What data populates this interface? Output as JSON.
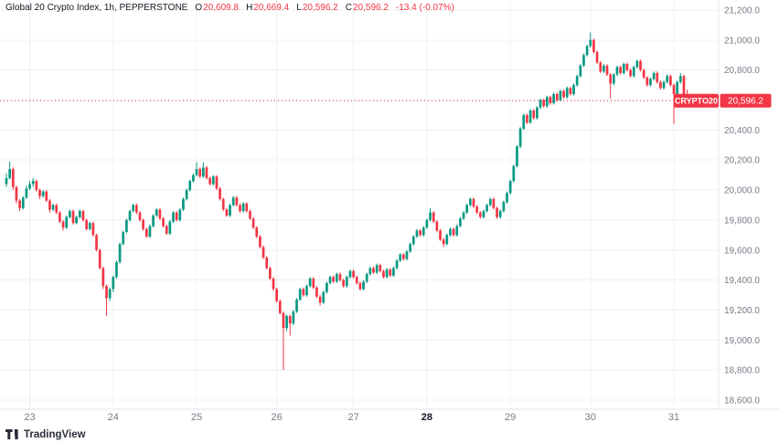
{
  "legend": {
    "title": "Global 20 Crypto Index, 1h, PEPPERSTONE",
    "items": [
      {
        "k": "O",
        "v": "20,609.8"
      },
      {
        "k": "H",
        "v": "20,669.4"
      },
      {
        "k": "L",
        "v": "20,596.2"
      },
      {
        "k": "C",
        "v": "20,596.2"
      }
    ],
    "change": "-13.4 (-0.07%)"
  },
  "footer": {
    "logo_text": "TradingView"
  },
  "colors": {
    "up": "#089981",
    "down": "#f23645",
    "grid": "#edf0f4",
    "axis_text": "#787b86",
    "axis_text_emphasis": "#131722",
    "badge_text": "#ffffff"
  },
  "chart_data": {
    "type": "candlestick",
    "title": "Global 20 Crypto Index, 1h, PEPPERSTONE",
    "symbol": "CRYPTO20",
    "interval": "1h",
    "broker": "PEPPERSTONE",
    "current_ohlc": {
      "open": 20609.8,
      "high": 20669.4,
      "low": 20596.2,
      "close": 20596.2,
      "change": -13.4,
      "change_pct": "-0.07%"
    },
    "last_price": 20596.2,
    "last_price_label": "20,596.2",
    "ylim": [
      18600,
      21200
    ],
    "grid": true,
    "up_color": "#089981",
    "down_color": "#f23645",
    "grid_color": "#edf0f4",
    "y_ticks": [
      {
        "value": 21200,
        "label": "21,200.0"
      },
      {
        "value": 21000,
        "label": "21,000.0"
      },
      {
        "value": 20800,
        "label": "20,800.0"
      },
      {
        "value": 20600,
        "label": "20,600.0"
      },
      {
        "value": 20400,
        "label": "20,400.0"
      },
      {
        "value": 20200,
        "label": "20,200.0"
      },
      {
        "value": 20000,
        "label": "20,000.0"
      },
      {
        "value": 19800,
        "label": "19,800.0"
      },
      {
        "value": 19600,
        "label": "19,600.0"
      },
      {
        "value": 19400,
        "label": "19,400.0"
      },
      {
        "value": 19200,
        "label": "19,200.0"
      },
      {
        "value": 19000,
        "label": "19,000.0"
      },
      {
        "value": 18800,
        "label": "18,800.0"
      },
      {
        "value": 18600,
        "label": "18,600.0"
      }
    ],
    "x_ticks": [
      {
        "label": "23",
        "idx": 7,
        "emphasis": false
      },
      {
        "label": "24",
        "idx": 32,
        "emphasis": false
      },
      {
        "label": "25",
        "idx": 57,
        "emphasis": false
      },
      {
        "label": "26",
        "idx": 81,
        "emphasis": false
      },
      {
        "label": "27",
        "idx": 104,
        "emphasis": false
      },
      {
        "label": "28",
        "idx": 126,
        "emphasis": true
      },
      {
        "label": "29",
        "idx": 151,
        "emphasis": false
      },
      {
        "label": "30",
        "idx": 175,
        "emphasis": false
      },
      {
        "label": "31",
        "idx": 200,
        "emphasis": false
      }
    ],
    "candles": [
      [
        20040,
        20110,
        20020,
        20080
      ],
      [
        20080,
        20190,
        20070,
        20140
      ],
      [
        20140,
        20150,
        20000,
        20020
      ],
      [
        20020,
        20030,
        19910,
        19930
      ],
      [
        19930,
        19940,
        19860,
        19880
      ],
      [
        19880,
        19960,
        19870,
        19950
      ],
      [
        19950,
        20030,
        19940,
        20010
      ],
      [
        20010,
        20060,
        20000,
        20040
      ],
      [
        20040,
        20080,
        20020,
        20060
      ],
      [
        20060,
        20070,
        19990,
        20000
      ],
      [
        20000,
        20010,
        19940,
        19960
      ],
      [
        19960,
        20000,
        19950,
        19990
      ],
      [
        19990,
        20000,
        19920,
        19930
      ],
      [
        19930,
        19940,
        19850,
        19870
      ],
      [
        19870,
        19910,
        19860,
        19900
      ],
      [
        19900,
        19910,
        19840,
        19850
      ],
      [
        19850,
        19860,
        19780,
        19790
      ],
      [
        19790,
        19800,
        19730,
        19750
      ],
      [
        19750,
        19830,
        19740,
        19820
      ],
      [
        19820,
        19870,
        19810,
        19860
      ],
      [
        19860,
        19870,
        19770,
        19780
      ],
      [
        19780,
        19830,
        19770,
        19820
      ],
      [
        19820,
        19870,
        19810,
        19860
      ],
      [
        19860,
        19870,
        19790,
        19800
      ],
      [
        19800,
        19810,
        19730,
        19740
      ],
      [
        19740,
        19790,
        19730,
        19780
      ],
      [
        19780,
        19790,
        19690,
        19700
      ],
      [
        19700,
        19710,
        19590,
        19600
      ],
      [
        19600,
        19610,
        19470,
        19480
      ],
      [
        19480,
        19490,
        19340,
        19360
      ],
      [
        19360,
        19370,
        19160,
        19280
      ],
      [
        19280,
        19350,
        19260,
        19340
      ],
      [
        19340,
        19430,
        19320,
        19420
      ],
      [
        19420,
        19530,
        19410,
        19520
      ],
      [
        19520,
        19650,
        19510,
        19640
      ],
      [
        19640,
        19730,
        19630,
        19720
      ],
      [
        19720,
        19810,
        19710,
        19800
      ],
      [
        19800,
        19870,
        19790,
        19860
      ],
      [
        19860,
        19910,
        19850,
        19900
      ],
      [
        19900,
        19910,
        19840,
        19850
      ],
      [
        19850,
        19860,
        19790,
        19800
      ],
      [
        19800,
        19810,
        19730,
        19740
      ],
      [
        19740,
        19750,
        19680,
        19690
      ],
      [
        19690,
        19770,
        19680,
        19760
      ],
      [
        19760,
        19840,
        19750,
        19830
      ],
      [
        19830,
        19880,
        19820,
        19870
      ],
      [
        19870,
        19880,
        19800,
        19810
      ],
      [
        19810,
        19820,
        19750,
        19760
      ],
      [
        19760,
        19770,
        19700,
        19710
      ],
      [
        19710,
        19800,
        19700,
        19790
      ],
      [
        19790,
        19860,
        19780,
        19850
      ],
      [
        19850,
        19860,
        19790,
        19800
      ],
      [
        19800,
        19880,
        19790,
        19870
      ],
      [
        19870,
        19950,
        19860,
        19940
      ],
      [
        19940,
        20010,
        19930,
        20000
      ],
      [
        20000,
        20070,
        19990,
        20060
      ],
      [
        20060,
        20110,
        20050,
        20100
      ],
      [
        20100,
        20185,
        20090,
        20140
      ],
      [
        20140,
        20150,
        20080,
        20090
      ],
      [
        20090,
        20185,
        20080,
        20150
      ],
      [
        20150,
        20160,
        20070,
        20080
      ],
      [
        20080,
        20090,
        20030,
        20040
      ],
      [
        20040,
        20100,
        20030,
        20090
      ],
      [
        20090,
        20100,
        20000,
        20010
      ],
      [
        20010,
        20020,
        19930,
        19940
      ],
      [
        19940,
        19950,
        19860,
        19870
      ],
      [
        19870,
        19880,
        19820,
        19830
      ],
      [
        19830,
        19910,
        19820,
        19900
      ],
      [
        19900,
        19960,
        19890,
        19950
      ],
      [
        19950,
        19960,
        19890,
        19900
      ],
      [
        19900,
        19910,
        19850,
        19860
      ],
      [
        19860,
        19920,
        19850,
        19910
      ],
      [
        19910,
        19920,
        19850,
        19860
      ],
      [
        19860,
        19870,
        19800,
        19810
      ],
      [
        19810,
        19820,
        19740,
        19750
      ],
      [
        19750,
        19760,
        19680,
        19690
      ],
      [
        19690,
        19700,
        19610,
        19620
      ],
      [
        19620,
        19630,
        19540,
        19550
      ],
      [
        19550,
        19560,
        19470,
        19480
      ],
      [
        19480,
        19490,
        19400,
        19410
      ],
      [
        19410,
        19420,
        19330,
        19340
      ],
      [
        19340,
        19350,
        19250,
        19260
      ],
      [
        19260,
        19270,
        19170,
        19180
      ],
      [
        19180,
        19190,
        18800,
        19080
      ],
      [
        19080,
        19170,
        19060,
        19160
      ],
      [
        19160,
        19170,
        19030,
        19110
      ],
      [
        19110,
        19200,
        19100,
        19190
      ],
      [
        19190,
        19280,
        19180,
        19270
      ],
      [
        19270,
        19350,
        19260,
        19340
      ],
      [
        19340,
        19350,
        19290,
        19300
      ],
      [
        19300,
        19370,
        19290,
        19360
      ],
      [
        19360,
        19420,
        19350,
        19410
      ],
      [
        19410,
        19420,
        19340,
        19350
      ],
      [
        19350,
        19360,
        19280,
        19290
      ],
      [
        19290,
        19300,
        19230,
        19250
      ],
      [
        19250,
        19330,
        19240,
        19320
      ],
      [
        19320,
        19390,
        19310,
        19380
      ],
      [
        19380,
        19430,
        19370,
        19420
      ],
      [
        19420,
        19430,
        19380,
        19390
      ],
      [
        19390,
        19450,
        19380,
        19440
      ],
      [
        19440,
        19450,
        19390,
        19400
      ],
      [
        19400,
        19410,
        19350,
        19360
      ],
      [
        19360,
        19430,
        19350,
        19420
      ],
      [
        19420,
        19470,
        19410,
        19460
      ],
      [
        19460,
        19470,
        19410,
        19420
      ],
      [
        19420,
        19430,
        19370,
        19380
      ],
      [
        19380,
        19390,
        19330,
        19340
      ],
      [
        19340,
        19400,
        19330,
        19390
      ],
      [
        19390,
        19450,
        19380,
        19440
      ],
      [
        19440,
        19490,
        19430,
        19480
      ],
      [
        19480,
        19490,
        19440,
        19450
      ],
      [
        19450,
        19510,
        19440,
        19500
      ],
      [
        19500,
        19510,
        19450,
        19460
      ],
      [
        19460,
        19470,
        19410,
        19420
      ],
      [
        19420,
        19480,
        19410,
        19470
      ],
      [
        19470,
        19480,
        19420,
        19430
      ],
      [
        19430,
        19490,
        19420,
        19480
      ],
      [
        19480,
        19540,
        19470,
        19530
      ],
      [
        19530,
        19580,
        19520,
        19570
      ],
      [
        19570,
        19580,
        19530,
        19540
      ],
      [
        19540,
        19600,
        19530,
        19590
      ],
      [
        19590,
        19650,
        19580,
        19640
      ],
      [
        19640,
        19700,
        19630,
        19690
      ],
      [
        19690,
        19740,
        19680,
        19730
      ],
      [
        19730,
        19740,
        19690,
        19700
      ],
      [
        19700,
        19760,
        19690,
        19750
      ],
      [
        19750,
        19810,
        19740,
        19800
      ],
      [
        19800,
        19880,
        19790,
        19850
      ],
      [
        19850,
        19860,
        19780,
        19790
      ],
      [
        19790,
        19800,
        19720,
        19730
      ],
      [
        19730,
        19740,
        19660,
        19670
      ],
      [
        19670,
        19680,
        19620,
        19640
      ],
      [
        19640,
        19710,
        19630,
        19700
      ],
      [
        19700,
        19750,
        19690,
        19740
      ],
      [
        19740,
        19750,
        19690,
        19700
      ],
      [
        19700,
        19770,
        19690,
        19760
      ],
      [
        19760,
        19820,
        19750,
        19810
      ],
      [
        19810,
        19860,
        19800,
        19850
      ],
      [
        19850,
        19910,
        19840,
        19900
      ],
      [
        19900,
        19950,
        19890,
        19940
      ],
      [
        19940,
        19950,
        19880,
        19890
      ],
      [
        19890,
        19900,
        19840,
        19850
      ],
      [
        19850,
        19860,
        19810,
        19820
      ],
      [
        19820,
        19870,
        19810,
        19860
      ],
      [
        19860,
        19910,
        19850,
        19900
      ],
      [
        19900,
        19950,
        19890,
        19940
      ],
      [
        19940,
        19950,
        19870,
        19880
      ],
      [
        19880,
        19890,
        19810,
        19820
      ],
      [
        19820,
        19870,
        19810,
        19860
      ],
      [
        19860,
        19930,
        19850,
        19920
      ],
      [
        19920,
        19990,
        19910,
        19980
      ],
      [
        19980,
        20070,
        19970,
        20060
      ],
      [
        20060,
        20170,
        20050,
        20160
      ],
      [
        20160,
        20300,
        20150,
        20290
      ],
      [
        20290,
        20420,
        20280,
        20410
      ],
      [
        20410,
        20510,
        20400,
        20500
      ],
      [
        20500,
        20510,
        20440,
        20450
      ],
      [
        20450,
        20540,
        20440,
        20530
      ],
      [
        20530,
        20540,
        20470,
        20480
      ],
      [
        20480,
        20560,
        20470,
        20550
      ],
      [
        20550,
        20610,
        20540,
        20600
      ],
      [
        20600,
        20610,
        20550,
        20560
      ],
      [
        20560,
        20630,
        20550,
        20620
      ],
      [
        20620,
        20630,
        20570,
        20580
      ],
      [
        20580,
        20650,
        20570,
        20640
      ],
      [
        20640,
        20650,
        20590,
        20600
      ],
      [
        20600,
        20670,
        20590,
        20660
      ],
      [
        20660,
        20670,
        20610,
        20620
      ],
      [
        20620,
        20690,
        20610,
        20680
      ],
      [
        20680,
        20690,
        20630,
        20640
      ],
      [
        20640,
        20710,
        20630,
        20700
      ],
      [
        20700,
        20770,
        20690,
        20760
      ],
      [
        20760,
        20840,
        20750,
        20830
      ],
      [
        20830,
        20910,
        20820,
        20900
      ],
      [
        20900,
        20970,
        20890,
        20960
      ],
      [
        20960,
        21050,
        20950,
        21000
      ],
      [
        21000,
        21010,
        20910,
        20920
      ],
      [
        20920,
        20930,
        20840,
        20850
      ],
      [
        20850,
        20860,
        20780,
        20790
      ],
      [
        20790,
        20840,
        20780,
        20830
      ],
      [
        20830,
        20840,
        20760,
        20770
      ],
      [
        20770,
        20780,
        20610,
        20710
      ],
      [
        20710,
        20780,
        20700,
        20770
      ],
      [
        20770,
        20830,
        20760,
        20820
      ],
      [
        20820,
        20830,
        20770,
        20780
      ],
      [
        20780,
        20850,
        20770,
        20840
      ],
      [
        20840,
        20850,
        20790,
        20800
      ],
      [
        20800,
        20810,
        20750,
        20760
      ],
      [
        20760,
        20830,
        20750,
        20820
      ],
      [
        20820,
        20870,
        20810,
        20860
      ],
      [
        20860,
        20870,
        20790,
        20800
      ],
      [
        20800,
        20810,
        20740,
        20750
      ],
      [
        20750,
        20760,
        20690,
        20700
      ],
      [
        20700,
        20750,
        20690,
        20740
      ],
      [
        20740,
        20790,
        20730,
        20780
      ],
      [
        20780,
        20790,
        20710,
        20720
      ],
      [
        20720,
        20730,
        20670,
        20680
      ],
      [
        20680,
        20730,
        20670,
        20720
      ],
      [
        20720,
        20770,
        20710,
        20760
      ],
      [
        20760,
        20770,
        20690,
        20700
      ],
      [
        20700,
        20710,
        20440,
        20640
      ],
      [
        20640,
        20730,
        20630,
        20720
      ],
      [
        20720,
        20780,
        20710,
        20760
      ],
      [
        20760,
        20770,
        20600,
        20610
      ],
      [
        20609.8,
        20669.4,
        20596.2,
        20596.2
      ]
    ]
  }
}
